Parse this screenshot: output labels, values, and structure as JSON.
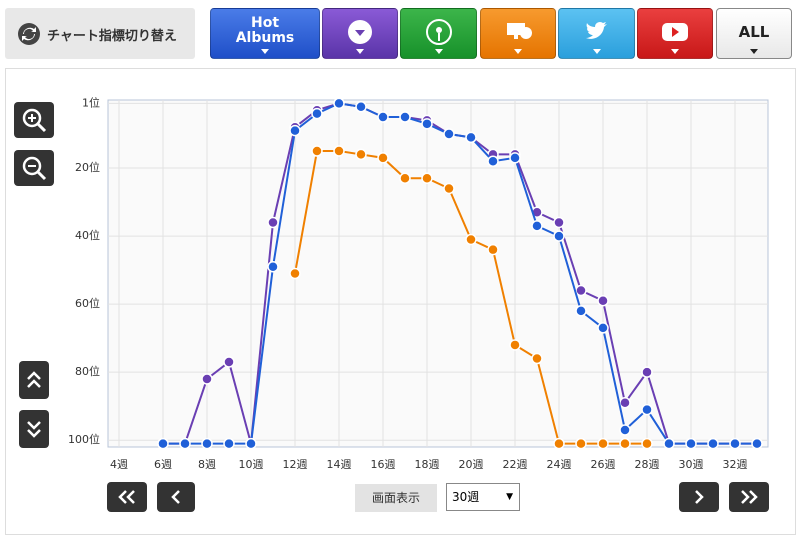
{
  "toolbar": {
    "label": "チャート指標切り替え",
    "hot_albums": "Hot Albums",
    "all": "ALL"
  },
  "controls": {
    "display_label": "画面表示",
    "select": "30週"
  },
  "chart_data": {
    "type": "line",
    "x": [
      4,
      5,
      6,
      7,
      8,
      9,
      10,
      11,
      12,
      13,
      14,
      15,
      16,
      17,
      18,
      19,
      20,
      21,
      22,
      23,
      24,
      25,
      26,
      27,
      28,
      29,
      30,
      31,
      32,
      33
    ],
    "xlim": [
      3.5,
      33.5
    ],
    "xticks": [
      {
        "value": 4,
        "label": "4週"
      },
      {
        "value": 6,
        "label": "6週"
      },
      {
        "value": 8,
        "label": "8週"
      },
      {
        "value": 10,
        "label": "10週"
      },
      {
        "value": 12,
        "label": "12週"
      },
      {
        "value": 14,
        "label": "14週"
      },
      {
        "value": 16,
        "label": "16週"
      },
      {
        "value": 18,
        "label": "18週"
      },
      {
        "value": 20,
        "label": "20週"
      },
      {
        "value": 22,
        "label": "22週"
      },
      {
        "value": 24,
        "label": "24週"
      },
      {
        "value": 26,
        "label": "26週"
      },
      {
        "value": 28,
        "label": "28週"
      },
      {
        "value": 30,
        "label": "30週"
      },
      {
        "value": 32,
        "label": "32週"
      }
    ],
    "ylim": [
      0,
      102
    ],
    "y_inverted": true,
    "yticks": [
      {
        "value": 1,
        "label": "1位"
      },
      {
        "value": 20,
        "label": "20位"
      },
      {
        "value": 40,
        "label": "40位"
      },
      {
        "value": 60,
        "label": "60位"
      },
      {
        "value": 80,
        "label": "80位"
      },
      {
        "value": 100,
        "label": "100位"
      }
    ],
    "grid": true,
    "series": [
      {
        "color": "#f08000",
        "values": [
          null,
          null,
          null,
          null,
          null,
          null,
          null,
          null,
          51,
          15,
          15,
          16,
          17,
          23,
          23,
          26,
          41,
          44,
          72,
          76,
          101,
          101,
          101,
          101,
          101,
          null,
          null,
          null,
          null,
          null
        ]
      },
      {
        "color": "#6a3fb3",
        "values": [
          null,
          null,
          101,
          101,
          82,
          77,
          101,
          36,
          8,
          3,
          1,
          2,
          5,
          5,
          6,
          10,
          11,
          16,
          16,
          33,
          36,
          56,
          59,
          89,
          80,
          101,
          101,
          101,
          101,
          101
        ]
      },
      {
        "color": "#2060d8",
        "values": [
          null,
          null,
          101,
          101,
          101,
          101,
          101,
          49,
          9,
          4,
          1,
          2,
          5,
          5,
          7,
          10,
          11,
          18,
          17,
          37,
          40,
          62,
          67,
          97,
          91,
          101,
          101,
          101,
          101,
          101
        ]
      }
    ]
  }
}
